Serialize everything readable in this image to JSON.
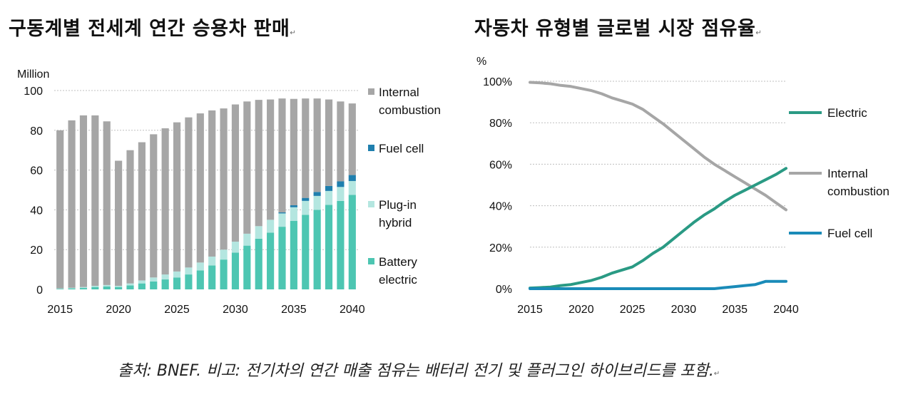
{
  "left_title": "구동계별 전세계 연간 승용차 판매",
  "right_title": "자동차 유형별 글로벌 시장 점유율",
  "source_note": "출처: BNEF. 비고: 전기차의 연간 매출 점유는 배터리 전기 및 플러그인 하이브리드를 포함.",
  "colors": {
    "internal_combustion": "#a6a6a6",
    "fuel_cell": "#1f7fae",
    "plug_in_hybrid": "#b4e6e0",
    "battery_electric": "#4dc6b2",
    "electric_line": "#2a9a84",
    "fuel_cell_line": "#1a8bb8",
    "gridline": "#bfbfbf"
  },
  "chart_data": [
    {
      "type": "bar",
      "stacked": true,
      "title": "구동계별 전세계 연간 승용차 판매",
      "ylabel": "Million",
      "ylim": [
        0,
        100
      ],
      "yticks": [
        0,
        20,
        40,
        60,
        80,
        100
      ],
      "xticks": [
        "2015",
        "2020",
        "2025",
        "2030",
        "2035",
        "2040"
      ],
      "grid": true,
      "legend_position": "right",
      "categories": [
        "2015",
        "2016",
        "2017",
        "2018",
        "2019",
        "2020",
        "2021",
        "2022",
        "2023",
        "2024",
        "2025",
        "2026",
        "2027",
        "2028",
        "2029",
        "2030",
        "2031",
        "2032",
        "2033",
        "2034",
        "2035",
        "2036",
        "2037",
        "2038",
        "2039",
        "2040"
      ],
      "series": [
        {
          "name": "Battery electric",
          "legend_lines": [
            "Battery",
            "electric"
          ],
          "color_key": "battery_electric",
          "values": [
            0.3,
            0.5,
            0.7,
            1.2,
            1.5,
            1.2,
            2.0,
            3.0,
            4.0,
            5.0,
            6.0,
            7.5,
            9.5,
            12.0,
            15.0,
            18.5,
            22.0,
            25.5,
            28.5,
            31.5,
            34.5,
            37.5,
            40.0,
            42.5,
            44.5,
            47.5
          ]
        },
        {
          "name": "Plug-in hybrid",
          "legend_lines": [
            "Plug-in",
            "hybrid"
          ],
          "color_key": "plug_in_hybrid",
          "values": [
            0.2,
            0.3,
            0.5,
            0.6,
            0.7,
            0.6,
            1.0,
            1.5,
            2.0,
            2.5,
            3.0,
            3.5,
            4.0,
            4.5,
            5.0,
            5.5,
            6.0,
            6.3,
            6.5,
            6.7,
            6.8,
            7.0,
            7.0,
            7.0,
            7.0,
            7.0
          ]
        },
        {
          "name": "Fuel cell",
          "legend_lines": [
            "Fuel cell"
          ],
          "color_key": "fuel_cell",
          "values": [
            0,
            0,
            0,
            0,
            0,
            0,
            0,
            0,
            0,
            0,
            0,
            0,
            0,
            0,
            0,
            0,
            0,
            0,
            0,
            0.5,
            1.0,
            1.5,
            2.0,
            2.5,
            2.8,
            3.0
          ]
        },
        {
          "name": "Internal combustion",
          "legend_lines": [
            "Internal",
            "combustion"
          ],
          "color_key": "internal_combustion",
          "values": [
            79.5,
            84.2,
            86.3,
            85.7,
            82.3,
            62.9,
            67.0,
            69.5,
            72.0,
            73.5,
            75.0,
            75.5,
            75.0,
            73.5,
            71.0,
            69.0,
            66.5,
            63.5,
            60.5,
            57.3,
            53.5,
            50.0,
            47.0,
            43.5,
            40.2,
            36.0
          ]
        }
      ]
    },
    {
      "type": "line",
      "title": "자동차 유형별 글로벌 시장 점유율",
      "ylabel": "%",
      "ylim": [
        0,
        100
      ],
      "yticks": [
        0,
        20,
        40,
        60,
        80,
        100
      ],
      "ytick_labels": [
        "0%",
        "20%",
        "40%",
        "60%",
        "80%",
        "100%"
      ],
      "xticks": [
        "2015",
        "2020",
        "2025",
        "2030",
        "2035",
        "2040"
      ],
      "grid": true,
      "legend_position": "right",
      "x": [
        2015,
        2016,
        2017,
        2018,
        2019,
        2020,
        2021,
        2022,
        2023,
        2024,
        2025,
        2026,
        2027,
        2028,
        2029,
        2030,
        2031,
        2032,
        2033,
        2034,
        2035,
        2036,
        2037,
        2038,
        2039,
        2040
      ],
      "series": [
        {
          "name": "Electric",
          "legend_lines": [
            "Electric"
          ],
          "color_key": "electric_line",
          "values": [
            0.3,
            0.5,
            0.8,
            1.5,
            2.0,
            3.0,
            4.0,
            5.5,
            7.5,
            9.0,
            10.5,
            13.5,
            17.0,
            20.0,
            24.0,
            28.0,
            32.0,
            35.5,
            38.5,
            42.0,
            45.0,
            47.5,
            50.0,
            52.5,
            55.0,
            58.0
          ]
        },
        {
          "name": "Internal combustion",
          "legend_lines": [
            "Internal",
            "combustion"
          ],
          "color_key": "internal_combustion",
          "values": [
            99.5,
            99.2,
            98.8,
            98.0,
            97.5,
            96.5,
            95.5,
            94.0,
            92.0,
            90.5,
            89.0,
            86.5,
            83.0,
            79.5,
            75.5,
            71.5,
            67.5,
            63.5,
            60.0,
            57.0,
            54.0,
            51.0,
            48.0,
            45.0,
            41.5,
            38.0
          ]
        },
        {
          "name": "Fuel cell",
          "legend_lines": [
            "Fuel cell"
          ],
          "color_key": "fuel_cell_line",
          "values": [
            0,
            0,
            0,
            0,
            0,
            0,
            0,
            0,
            0,
            0,
            0,
            0,
            0,
            0,
            0,
            0,
            0,
            0,
            0,
            0.5,
            1.0,
            1.5,
            2.0,
            3.5,
            3.5,
            3.5
          ]
        }
      ]
    }
  ]
}
